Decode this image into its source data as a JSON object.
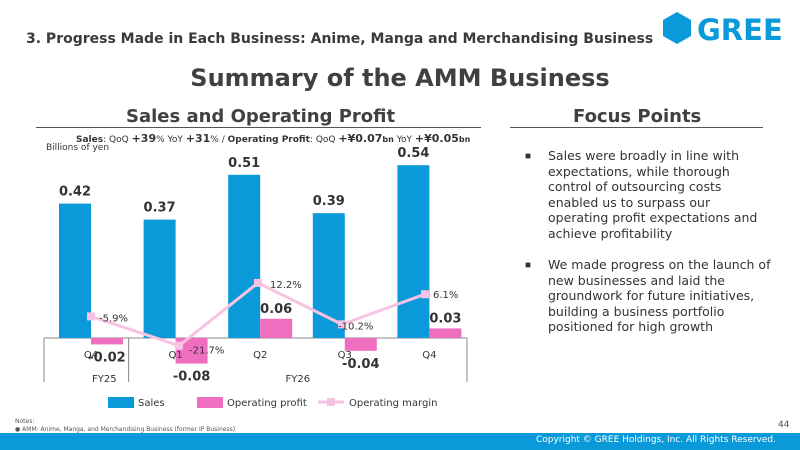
{
  "header": {
    "section_title": "3. Progress Made in Each Business: Anime, Manga and Merchandising Business",
    "logo_text": "GREE",
    "main_title": "Summary of the AMM Business"
  },
  "left_panel": {
    "title": "Sales and Operating Profit",
    "growth": {
      "sales_label": "Sales",
      "qoq_label": "QoQ",
      "sales_qoq": "+39",
      "pct": "%",
      "yoy_label": "YoY",
      "sales_yoy": "+31",
      "separator": "/",
      "op_label": "Operating Profit",
      "op_qoq": "+¥0.07",
      "bn": "bn",
      "op_yoy": "+¥0.05"
    },
    "unit": "Billions of yen"
  },
  "right_panel": {
    "title": "Focus Points",
    "bullets": [
      "Sales were broadly in line with expectations, while thorough control of outsourcing costs enabled us to surpass our operating profit expectations and achieve profitability",
      "We made progress on the launch of new businesses and laid the groundwork for future initiatives, building a business portfolio positioned for high growth"
    ]
  },
  "chart_data": {
    "type": "bar",
    "categories": [
      "Q4",
      "Q1",
      "Q2",
      "Q3",
      "Q4"
    ],
    "fiscal_years": [
      {
        "label": "FY25",
        "categories": [
          "Q4"
        ]
      },
      {
        "label": "FY26",
        "categories": [
          "Q1",
          "Q2",
          "Q3",
          "Q4"
        ]
      }
    ],
    "series": [
      {
        "name": "Sales",
        "type": "bar",
        "values": [
          0.42,
          0.37,
          0.51,
          0.39,
          0.54
        ],
        "labels": [
          "0.42",
          "0.37",
          "0.51",
          "0.39",
          "0.54"
        ],
        "color": "#0b9ad9"
      },
      {
        "name": "Operating profit",
        "type": "bar",
        "values": [
          -0.02,
          -0.08,
          0.06,
          -0.04,
          0.03
        ],
        "labels": [
          "-0.02",
          "-0.08",
          "0.06",
          "-0.04",
          "0.03"
        ],
        "color": "#f06ec0"
      },
      {
        "name": "Operating margin",
        "type": "line",
        "axis": "secondary",
        "values": [
          -5.9,
          -21.7,
          12.2,
          -10.2,
          6.1
        ],
        "labels": [
          "-5.9%",
          "-21.7%",
          "12.2%",
          "-10.2%",
          "6.1%"
        ],
        "color": "#f7c3e2"
      }
    ],
    "ylim": [
      -0.1,
      0.6
    ],
    "y2lim": [
      -22,
      15
    ],
    "legend_position": "bottom"
  },
  "footer": {
    "notes_heading": "Notes:",
    "note": "AMM: Anime, Manga, and Merchandising Business (former IP Business)",
    "page_number": "44",
    "copyright": "Copyright © GREE Holdings, Inc. All Rights Reserved."
  }
}
